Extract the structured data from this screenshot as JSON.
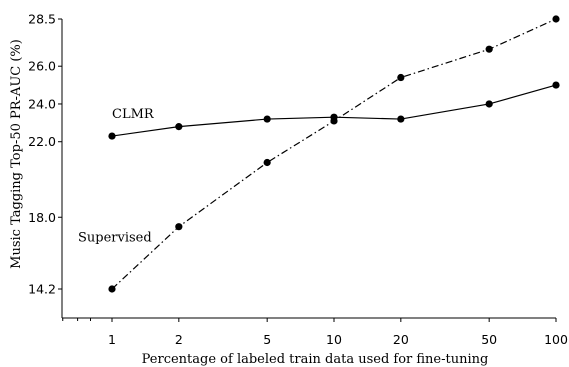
{
  "chart_data": {
    "type": "line",
    "x": [
      1,
      2,
      5,
      10,
      20,
      50,
      100
    ],
    "x_tick_labels": [
      "1",
      "2",
      "5",
      "10",
      "20",
      "50",
      "100"
    ],
    "x_scale": "log",
    "xlabel": "Percentage of labeled train data used for fine-tuning",
    "ylabel": "Music Tagging Top-50 PR-AUC (%)",
    "y_ticks": [
      14.2,
      18.0,
      22.0,
      24.0,
      26.0,
      28.5
    ],
    "y_tick_labels": [
      "14.2",
      "18.0",
      "22.0",
      "24.0",
      "26.0",
      "28.5"
    ],
    "ylim": [
      12.8,
      29.0
    ],
    "grid": false,
    "legend": "none",
    "series": [
      {
        "name": "CLMR",
        "linestyle": "solid",
        "values": [
          22.3,
          22.8,
          23.2,
          23.3,
          23.2,
          24.0,
          25.0
        ]
      },
      {
        "name": "Supervised",
        "linestyle": "dashdot",
        "values": [
          14.2,
          17.5,
          20.9,
          23.1,
          25.4,
          26.9,
          28.5
        ]
      }
    ],
    "colors": {
      "line": "#000000",
      "marker": "#000000"
    }
  }
}
